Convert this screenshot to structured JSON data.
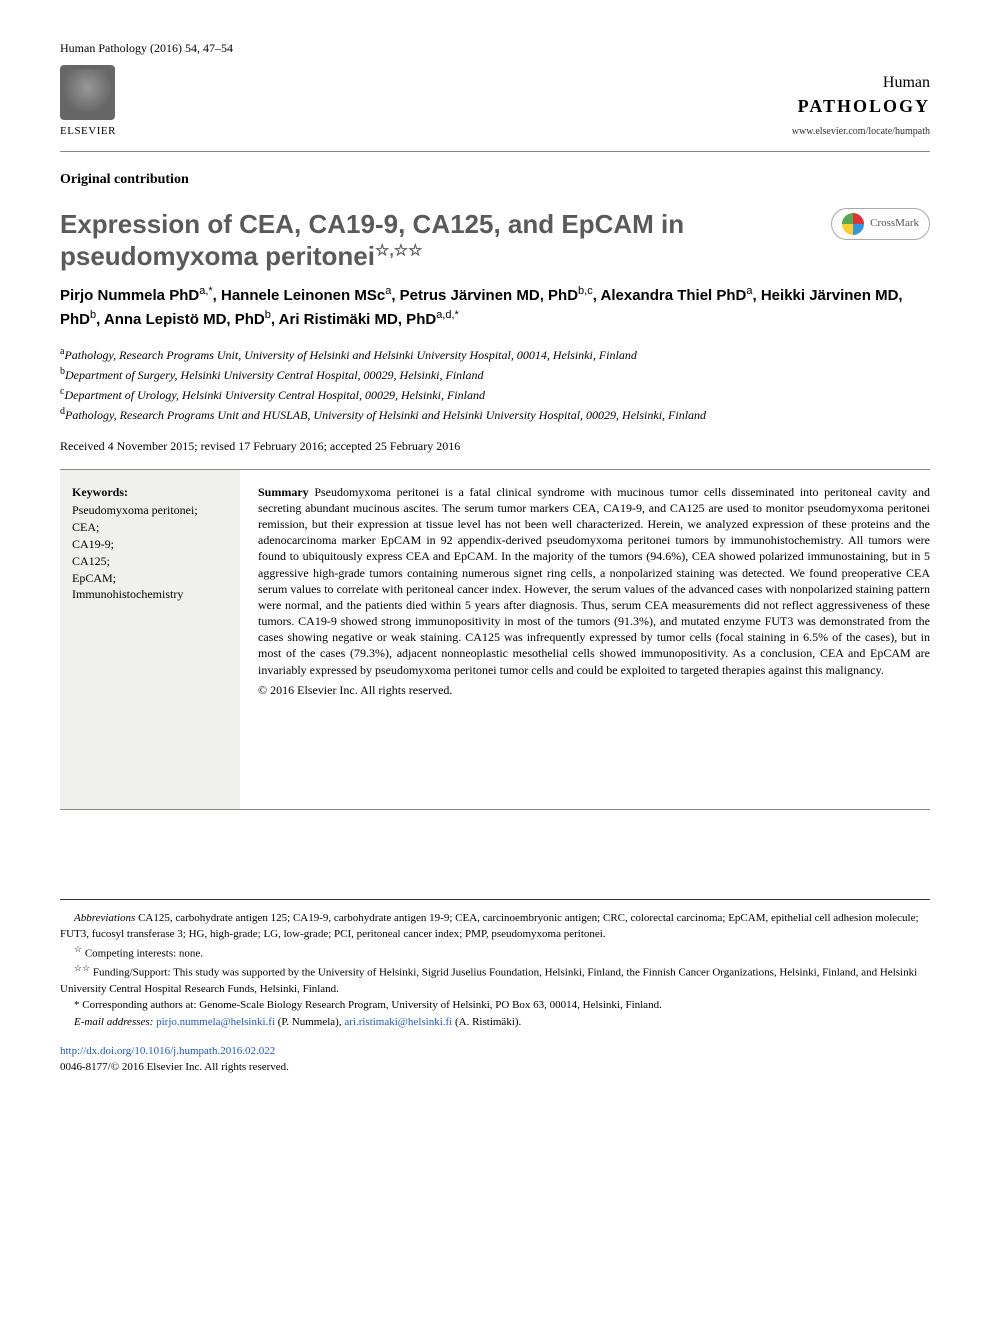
{
  "citation": "Human Pathology (2016) 54, 47–54",
  "publisher": {
    "label": "ELSEVIER"
  },
  "journal": {
    "line1": "Human",
    "line2": "PATHOLOGY",
    "url": "www.elsevier.com/locate/humpath"
  },
  "section_label": "Original contribution",
  "crossmark_label": "CrossMark",
  "title": "Expression of CEA, CA19-9, CA125, and EpCAM in pseudomyxoma peritonei",
  "title_stars": "☆,☆☆",
  "authors_html": "Pirjo Nummela PhD<sup>a,*</sup>, Hannele Leinonen MSc<sup>a</sup>, Petrus Järvinen MD, PhD<sup>b,c</sup>, Alexandra Thiel PhD<sup>a</sup>, Heikki Järvinen MD, PhD<sup>b</sup>, Anna Lepistö MD, PhD<sup>b</sup>, Ari Ristimäki MD, PhD<sup>a,d,*</sup>",
  "affiliations": [
    {
      "sup": "a",
      "text": "Pathology, Research Programs Unit, University of Helsinki and Helsinki University Hospital, 00014, Helsinki, Finland"
    },
    {
      "sup": "b",
      "text": "Department of Surgery, Helsinki University Central Hospital, 00029, Helsinki, Finland"
    },
    {
      "sup": "c",
      "text": "Department of Urology, Helsinki University Central Hospital, 00029, Helsinki, Finland"
    },
    {
      "sup": "d",
      "text": "Pathology, Research Programs Unit and HUSLAB, University of Helsinki and Helsinki University Hospital, 00029, Helsinki, Finland"
    }
  ],
  "dates": "Received 4 November 2015; revised 17 February 2016; accepted 25 February 2016",
  "keywords": {
    "heading": "Keywords:",
    "items": [
      "Pseudomyxoma peritonei;",
      "CEA;",
      "CA19-9;",
      "CA125;",
      "EpCAM;",
      "Immunohistochemistry"
    ]
  },
  "summary": {
    "heading": "Summary",
    "body": "Pseudomyxoma peritonei is a fatal clinical syndrome with mucinous tumor cells disseminated into peritoneal cavity and secreting abundant mucinous ascites. The serum tumor markers CEA, CA19-9, and CA125 are used to monitor pseudomyxoma peritonei remission, but their expression at tissue level has not been well characterized. Herein, we analyzed expression of these proteins and the adenocarcinoma marker EpCAM in 92 appendix-derived pseudomyxoma peritonei tumors by immunohistochemistry. All tumors were found to ubiquitously express CEA and EpCAM. In the majority of the tumors (94.6%), CEA showed polarized immunostaining, but in 5 aggressive high-grade tumors containing numerous signet ring cells, a nonpolarized staining was detected. We found preoperative CEA serum values to correlate with peritoneal cancer index. However, the serum values of the advanced cases with nonpolarized staining pattern were normal, and the patients died within 5 years after diagnosis. Thus, serum CEA measurements did not reflect aggressiveness of these tumors. CA19-9 showed strong immunopositivity in most of the tumors (91.3%), and mutated enzyme FUT3 was demonstrated from the cases showing negative or weak staining. CA125 was infrequently expressed by tumor cells (focal staining in 6.5% of the cases), but in most of the cases (79.3%), adjacent nonneoplastic mesothelial cells showed immunopositivity. As a conclusion, CEA and EpCAM are invariably expressed by pseudomyxoma peritonei tumor cells and could be exploited to targeted therapies against this malignancy.",
    "copyright": "© 2016 Elsevier Inc. All rights reserved."
  },
  "abbreviations": {
    "heading": "Abbreviations",
    "text": "CA125, carbohydrate antigen 125; CA19-9, carbohydrate antigen 19-9; CEA, carcinoembryonic antigen; CRC, colorectal carcinoma; EpCAM, epithelial cell adhesion molecule; FUT3, fucosyl transferase 3; HG, high-grade; LG, low-grade; PCI, peritoneal cancer index; PMP, pseudomyxoma peritonei."
  },
  "footnotes": {
    "competing": {
      "mark": "☆",
      "text": "Competing interests: none."
    },
    "funding": {
      "mark": "☆☆",
      "text": "Funding/Support: This study was supported by the University of Helsinki, Sigrid Juselius Foundation, Helsinki, Finland, the Finnish Cancer Organizations, Helsinki, Finland, and Helsinki University Central Hospital Research Funds, Helsinki, Finland."
    },
    "corresponding": {
      "mark": "*",
      "text": "Corresponding authors at: Genome-Scale Biology Research Program, University of Helsinki, PO Box 63, 00014, Helsinki, Finland."
    },
    "email_label": "E-mail addresses:",
    "emails": [
      {
        "addr": "pirjo.nummela@helsinki.fi",
        "who": "(P. Nummela),"
      },
      {
        "addr": "ari.ristimaki@helsinki.fi",
        "who": "(A. Ristimäki)."
      }
    ]
  },
  "doi": {
    "url": "http://dx.doi.org/10.1016/j.humpath.2016.02.022",
    "issn_line": "0046-8177/© 2016 Elsevier Inc. All rights reserved."
  },
  "colors": {
    "title_color": "#5a5a5a",
    "keywords_bg": "#f0f0ee",
    "link_color": "#2058c4",
    "rule_color": "#888888"
  },
  "fonts": {
    "body": "Georgia, Times New Roman, serif",
    "headings": "Arial, Helvetica, sans-serif",
    "title_size_pt": 20,
    "author_size_pt": 11,
    "body_size_pt": 9
  }
}
